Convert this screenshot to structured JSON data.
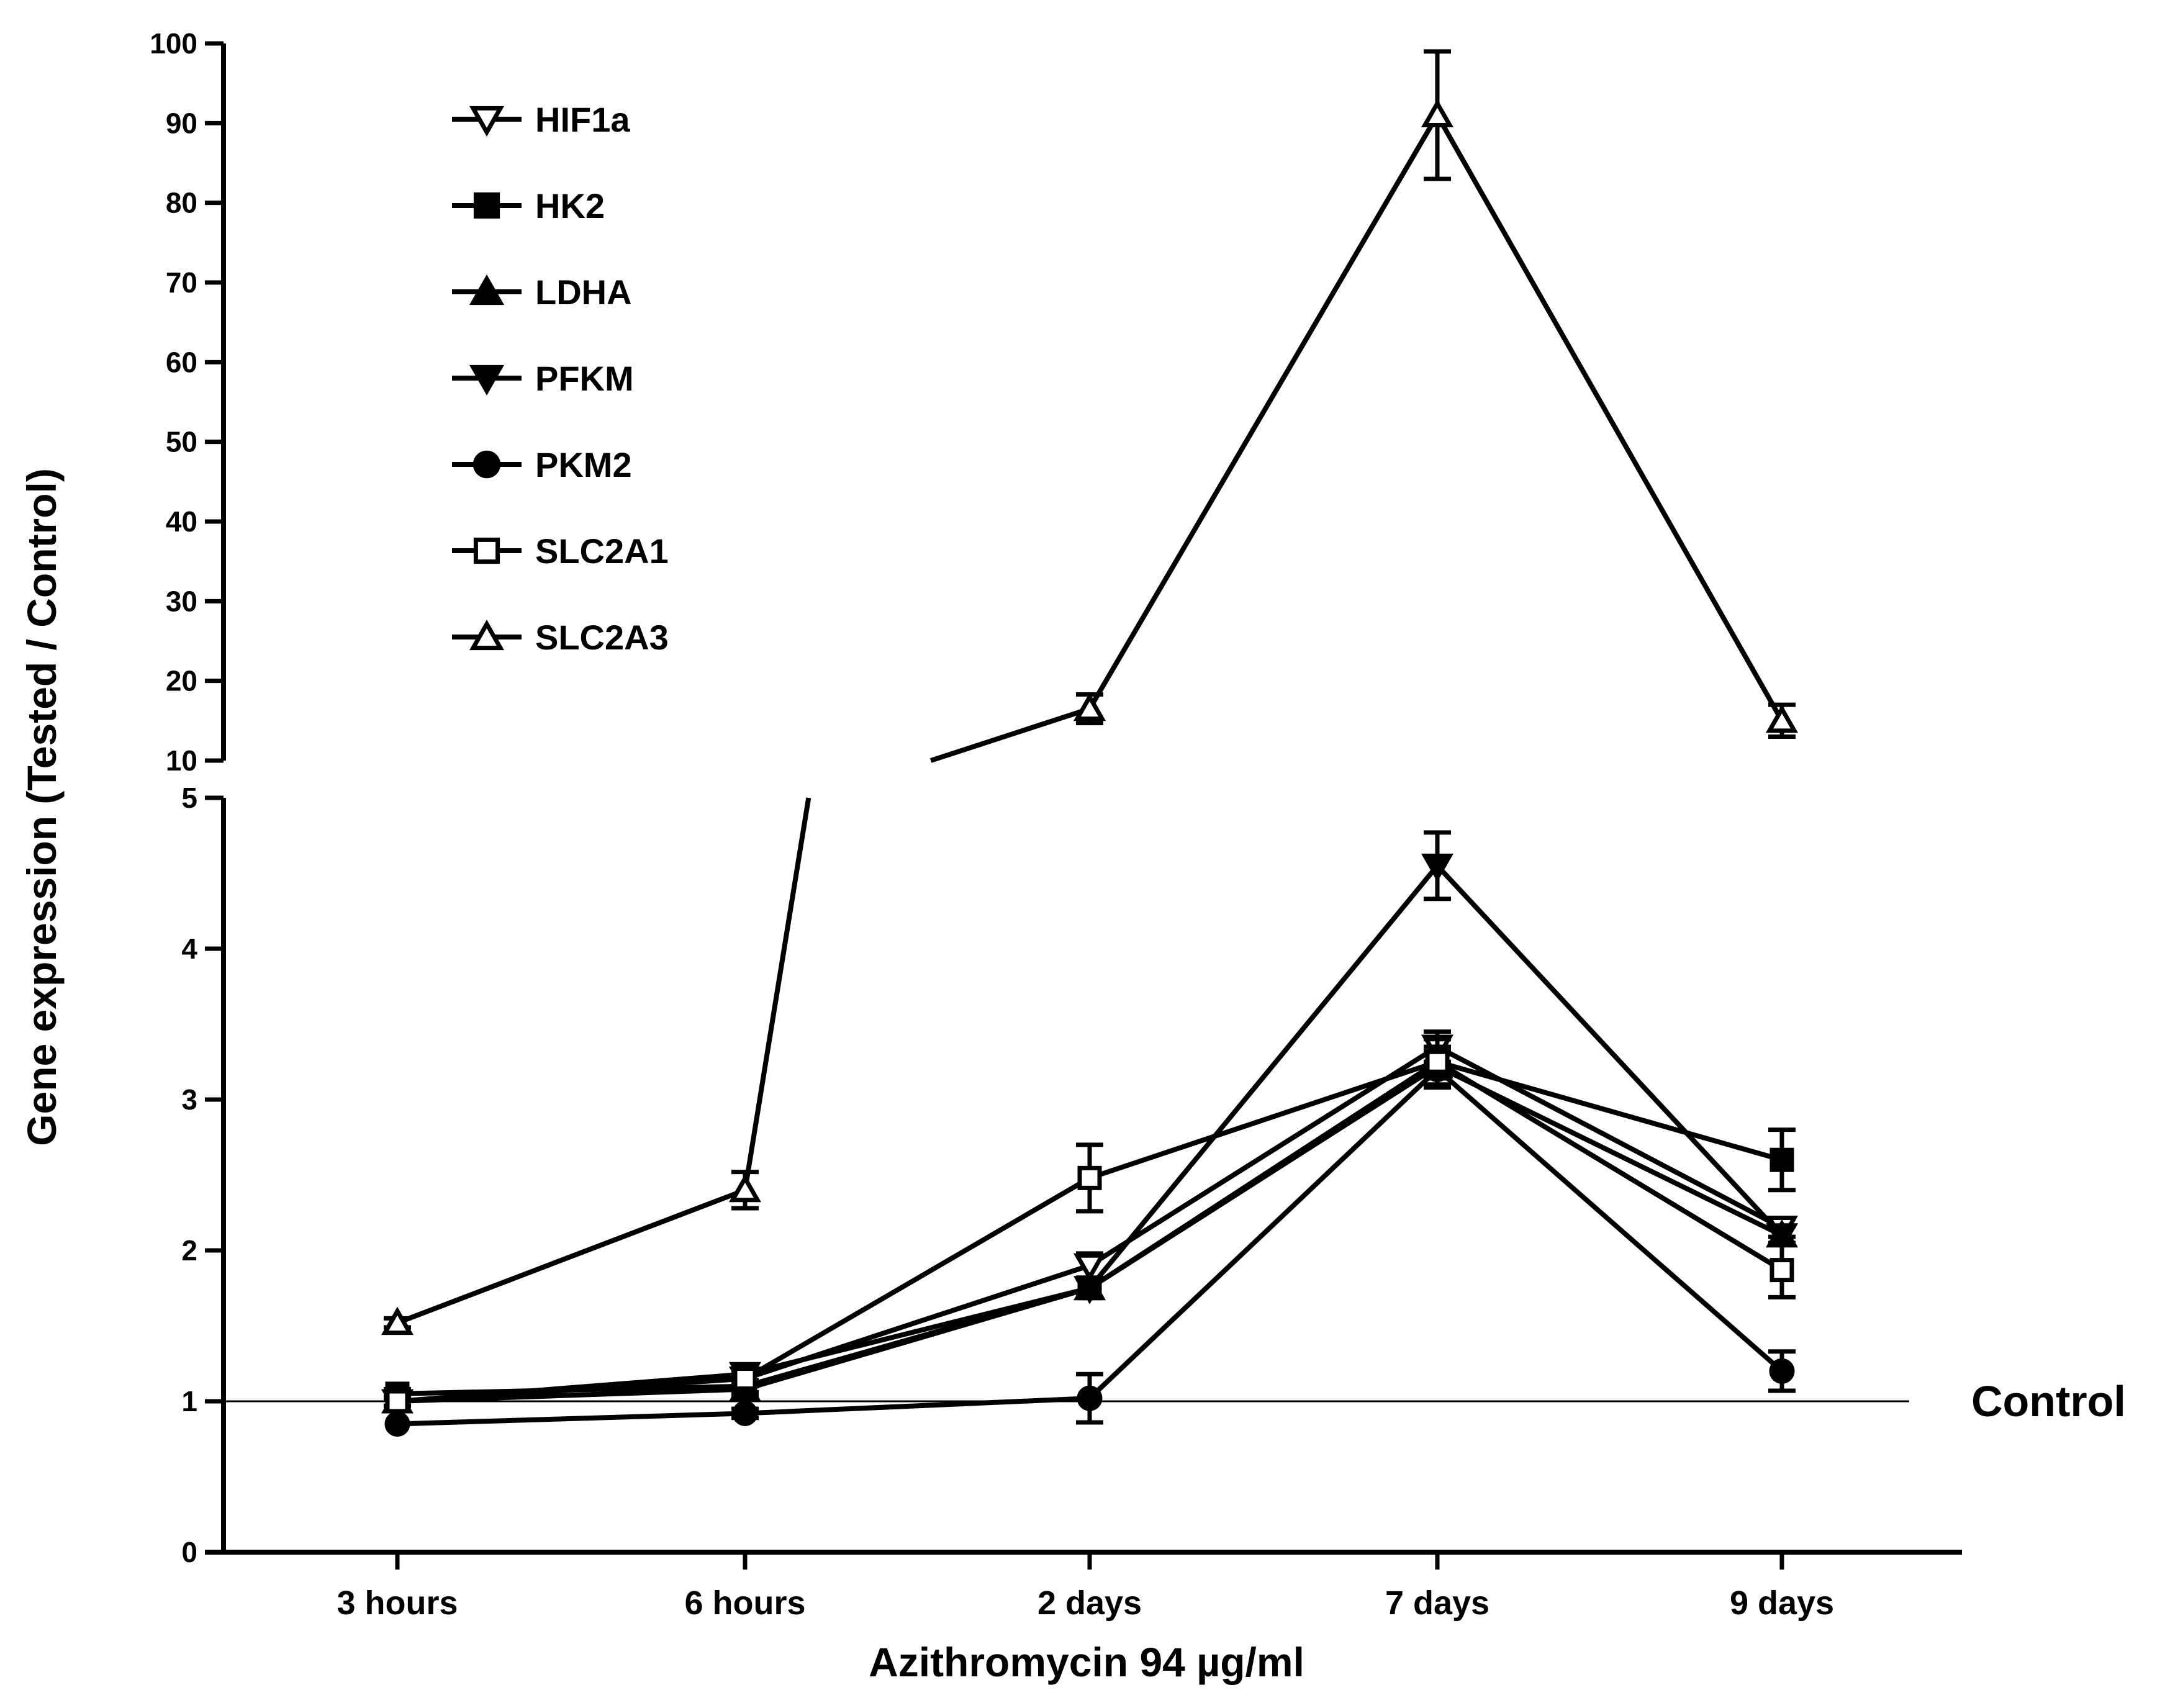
{
  "chart_data": {
    "type": "line",
    "xlabel": "Azithromycin 94 µg/ml",
    "ylabel": "Gene expression (Tested / Control)",
    "categories": [
      "3 hours",
      "6 hours",
      "2 days",
      "7 days",
      "9 days"
    ],
    "y_axis_break": {
      "lower_range": [
        0,
        5
      ],
      "lower_ticks": [
        "0",
        "1",
        "2",
        "3",
        "4",
        "5"
      ],
      "upper_range": [
        10,
        100
      ],
      "upper_ticks": [
        "10",
        "20",
        "30",
        "40",
        "50",
        "60",
        "70",
        "80",
        "90",
        "100"
      ]
    },
    "reference_line": {
      "value": 1,
      "label": "Control"
    },
    "legend_position": "top-left",
    "series": [
      {
        "name": "HIF1a",
        "marker": "triangle-down-open",
        "values": [
          1.0,
          1.15,
          1.9,
          3.35,
          2.15
        ],
        "errors": [
          0.03,
          0.05,
          0.08,
          0.1,
          0.06
        ]
      },
      {
        "name": "HK2",
        "marker": "square-filled",
        "values": [
          1.05,
          1.1,
          1.75,
          3.25,
          2.6
        ],
        "errors": [
          0.03,
          0.04,
          0.06,
          0.1,
          0.2
        ]
      },
      {
        "name": "LDHA",
        "marker": "triangle-up-filled",
        "values": [
          1.0,
          1.08,
          1.75,
          3.22,
          2.1
        ],
        "errors": [
          0.03,
          0.04,
          0.06,
          0.08,
          0.06
        ]
      },
      {
        "name": "PFKM",
        "marker": "triangle-down-filled",
        "values": [
          1.0,
          1.18,
          1.75,
          4.55,
          2.1
        ],
        "errors": [
          0.03,
          0.04,
          0.06,
          0.22,
          0.06
        ]
      },
      {
        "name": "PKM2",
        "marker": "circle-filled",
        "values": [
          0.85,
          0.92,
          1.02,
          3.2,
          1.2
        ],
        "errors": [
          0.02,
          0.03,
          0.16,
          0.12,
          0.13
        ]
      },
      {
        "name": "SLC2A1",
        "marker": "square-open",
        "values": [
          1.0,
          1.15,
          2.48,
          3.25,
          1.87
        ],
        "errors": [
          0.03,
          0.04,
          0.22,
          0.15,
          0.18
        ]
      },
      {
        "name": "SLC2A3",
        "marker": "triangle-up-open",
        "values": [
          1.52,
          2.4,
          16.5,
          91.0,
          15.0
        ],
        "errors": [
          0.03,
          0.12,
          1.8,
          8.0,
          2.0
        ]
      }
    ]
  }
}
